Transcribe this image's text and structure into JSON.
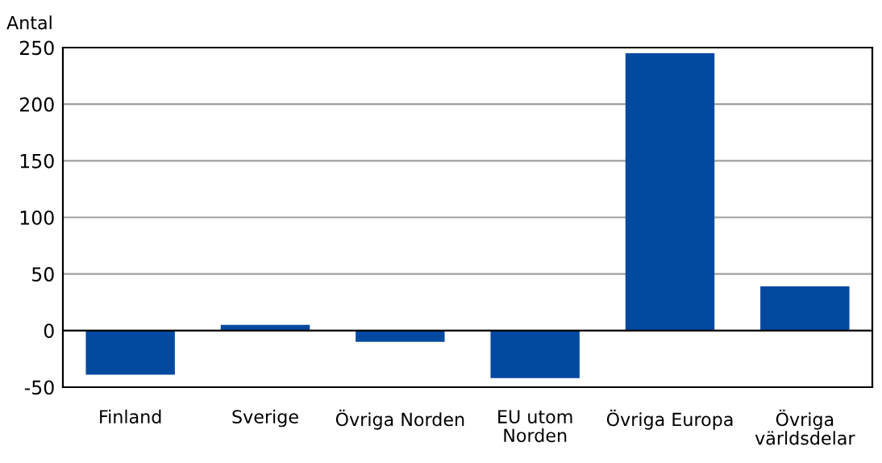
{
  "chart_data": {
    "type": "bar",
    "ylabel": "Antal",
    "categories": [
      "Finland",
      "Sverige",
      "Övriga Norden",
      "EU utom\nNorden",
      "Övriga Europa",
      "Övriga\nvärldsdelar"
    ],
    "values": [
      -39,
      5,
      -10,
      -42,
      245,
      39
    ],
    "color": "#0349a0",
    "ylim": [
      -50,
      250
    ],
    "yticks": [
      -50,
      0,
      50,
      100,
      150,
      200,
      250
    ],
    "grid": "y",
    "legend": false
  }
}
